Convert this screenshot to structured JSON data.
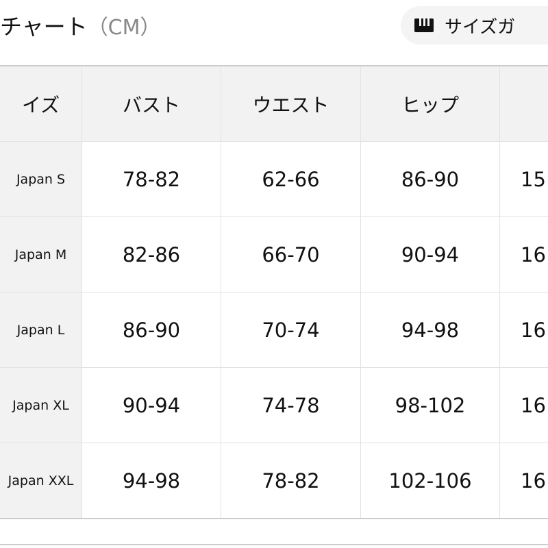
{
  "header": {
    "title": "チャート",
    "unit": "（CM）",
    "guide_button": {
      "icon": "ruler-icon",
      "label": "サイズガ"
    }
  },
  "table": {
    "columns": [
      "イズ",
      "バスト",
      "ウエスト",
      "ヒップ",
      ""
    ],
    "rows": [
      [
        "Japan S",
        "78-82",
        "62-66",
        "86-90",
        "15"
      ],
      [
        "Japan M",
        "82-86",
        "66-70",
        "90-94",
        "16"
      ],
      [
        "Japan L",
        "86-90",
        "70-74",
        "94-98",
        "16"
      ],
      [
        "Japan XL",
        "90-94",
        "74-78",
        "98-102",
        "16"
      ],
      [
        "Japan XXL",
        "94-98",
        "78-82",
        "102-106",
        "16"
      ]
    ]
  }
}
